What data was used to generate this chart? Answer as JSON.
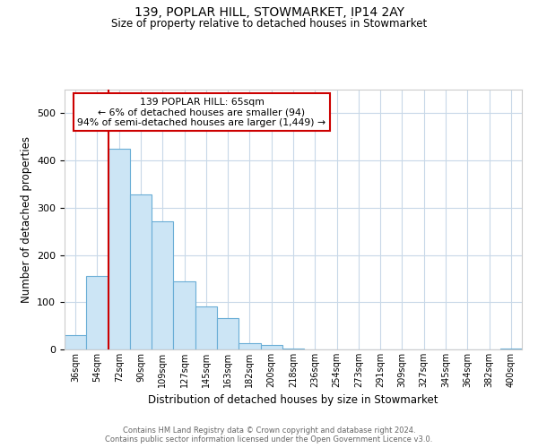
{
  "title": "139, POPLAR HILL, STOWMARKET, IP14 2AY",
  "subtitle": "Size of property relative to detached houses in Stowmarket",
  "xlabel": "Distribution of detached houses by size in Stowmarket",
  "ylabel": "Number of detached properties",
  "bar_labels": [
    "36sqm",
    "54sqm",
    "72sqm",
    "90sqm",
    "109sqm",
    "127sqm",
    "145sqm",
    "163sqm",
    "182sqm",
    "200sqm",
    "218sqm",
    "236sqm",
    "254sqm",
    "273sqm",
    "291sqm",
    "309sqm",
    "327sqm",
    "345sqm",
    "364sqm",
    "382sqm",
    "400sqm"
  ],
  "bar_values": [
    30,
    155,
    425,
    328,
    272,
    145,
    91,
    67,
    13,
    9,
    2,
    0,
    0,
    0,
    0,
    0,
    0,
    0,
    0,
    0,
    2
  ],
  "bar_color": "#cce5f5",
  "bar_edge_color": "#6aaed6",
  "red_line_x": 1.5,
  "annotation_text": "139 POPLAR HILL: 65sqm\n← 6% of detached houses are smaller (94)\n94% of semi-detached houses are larger (1,449) →",
  "annotation_box_color": "#ffffff",
  "annotation_box_edge_color": "#cc0000",
  "red_line_color": "#cc0000",
  "ylim": [
    0,
    550
  ],
  "footer_line1": "Contains HM Land Registry data © Crown copyright and database right 2024.",
  "footer_line2": "Contains public sector information licensed under the Open Government Licence v3.0.",
  "background_color": "#ffffff",
  "grid_color": "#c8d8e8"
}
